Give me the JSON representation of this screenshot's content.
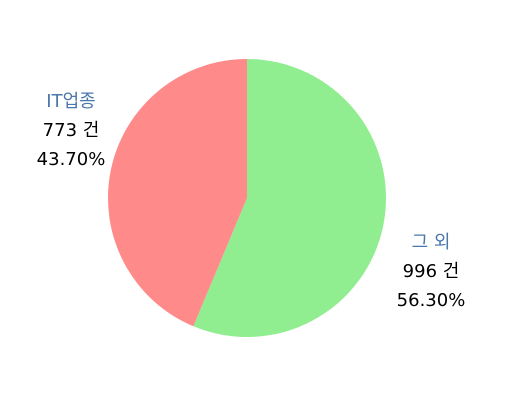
{
  "chart_data": {
    "type": "pie",
    "title": "",
    "slices": [
      {
        "label": "그 외",
        "value": 996,
        "value_text": "996 건",
        "percent": 56.3,
        "percent_text": "56.30%",
        "color": "#90ee90"
      },
      {
        "label": "IT업종",
        "value": 773,
        "value_text": "773 건",
        "percent": 43.7,
        "percent_text": "43.70%",
        "color": "#ff8a8a"
      }
    ],
    "start": "top",
    "direction": "clockwise",
    "legend": "none",
    "label_color": "#4a77ac"
  }
}
